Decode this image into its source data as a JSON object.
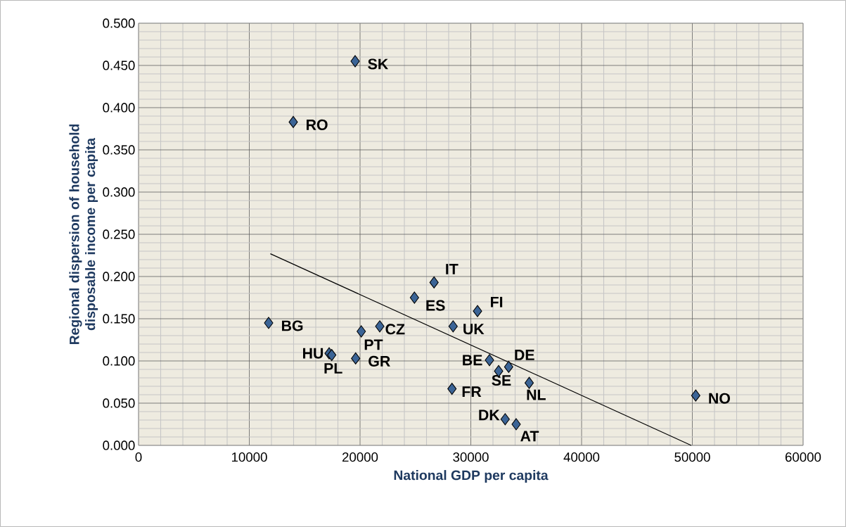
{
  "chart_data": {
    "type": "scatter",
    "xlabel": "National GDP per capita",
    "ylabel": "Regional dispersion of household disposable income per capita",
    "xlim": [
      0,
      60000
    ],
    "ylim": [
      0,
      0.5
    ],
    "xticks": [
      0,
      10000,
      20000,
      30000,
      40000,
      50000,
      60000
    ],
    "yticks": [
      {
        "value": 0,
        "label": "0.000"
      },
      {
        "value": 0.05,
        "label": "0.050"
      },
      {
        "value": 0.1,
        "label": "0.100"
      },
      {
        "value": 0.15,
        "label": "0.150"
      },
      {
        "value": 0.2,
        "label": "0.200"
      },
      {
        "value": 0.25,
        "label": "0.250"
      },
      {
        "value": 0.3,
        "label": "0.300"
      },
      {
        "value": 0.35,
        "label": "0.350"
      },
      {
        "value": 0.4,
        "label": "0.400"
      },
      {
        "value": 0.45,
        "label": "0.450"
      },
      {
        "value": 0.5,
        "label": "0.500"
      }
    ],
    "grid": true,
    "marker": "diamond",
    "series": [
      {
        "color": "#3b6496",
        "x": [
          19556,
          13968,
          11746,
          17206,
          17441,
          19600,
          20108,
          21778,
          24910,
          26680,
          28400,
          30603,
          28298,
          31683,
          32508,
          33418,
          35270,
          33100,
          34095,
          50305
        ],
        "values": [
          0.455,
          0.383,
          0.145,
          0.109,
          0.107,
          0.103,
          0.135,
          0.141,
          0.175,
          0.193,
          0.141,
          0.159,
          0.067,
          0.101,
          0.088,
          0.093,
          0.074,
          0.031,
          0.025,
          0.059
        ]
      },
      {
        "type": "line",
        "marker": "none",
        "color": "#000000",
        "x": [
          11900,
          49900
        ],
        "values": [
          0.227,
          0.0
        ]
      }
    ],
    "annotations": [
      {
        "text": "SK",
        "x": 19556,
        "y": 0.455
      },
      {
        "text": "RO",
        "x": 13968,
        "y": 0.383
      },
      {
        "text": "BG",
        "x": 11746,
        "y": 0.145
      },
      {
        "text": "HU",
        "x": 17206,
        "y": 0.109
      },
      {
        "text": "PL",
        "x": 17441,
        "y": 0.107
      },
      {
        "text": "GR",
        "x": 19600,
        "y": 0.103
      },
      {
        "text": "PT",
        "x": 20108,
        "y": 0.135
      },
      {
        "text": "CZ",
        "x": 21778,
        "y": 0.141
      },
      {
        "text": "ES",
        "x": 24910,
        "y": 0.175
      },
      {
        "text": "IT",
        "x": 26680,
        "y": 0.193
      },
      {
        "text": "UK",
        "x": 28400,
        "y": 0.141
      },
      {
        "text": "FI",
        "x": 30603,
        "y": 0.159
      },
      {
        "text": "FR",
        "x": 28298,
        "y": 0.067
      },
      {
        "text": "BE",
        "x": 31683,
        "y": 0.101
      },
      {
        "text": "SE",
        "x": 32508,
        "y": 0.088
      },
      {
        "text": "DE",
        "x": 33418,
        "y": 0.093
      },
      {
        "text": "NL",
        "x": 35270,
        "y": 0.074
      },
      {
        "text": "DK",
        "x": 33100,
        "y": 0.031
      },
      {
        "text": "AT",
        "x": 34095,
        "y": 0.025
      },
      {
        "text": "NO",
        "x": 50305,
        "y": 0.059
      }
    ]
  }
}
